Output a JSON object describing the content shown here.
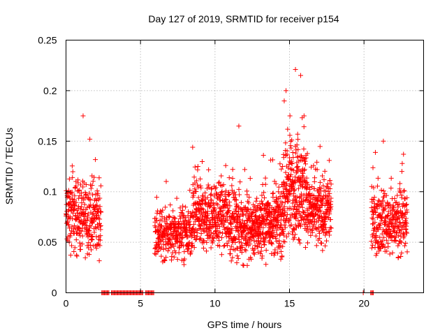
{
  "chart_data": {
    "type": "scatter",
    "title": "Day 127 of 2019, SRMTID for receiver p154",
    "xlabel": "GPS time / hours",
    "ylabel": "SRMTID / TECUs",
    "xlim": [
      0,
      24
    ],
    "ylim": [
      0,
      0.25
    ],
    "x_ticks": [
      0,
      5,
      10,
      15,
      20
    ],
    "x_tick_labels": [
      "0",
      "5",
      "10",
      "15",
      "20"
    ],
    "y_ticks": [
      0,
      0.05,
      0.1,
      0.15,
      0.2,
      0.25
    ],
    "y_tick_labels": [
      "0",
      "0.05",
      "0.1",
      "0.15",
      "0.2",
      "0.25"
    ],
    "grid": true,
    "marker": "+",
    "color": "#ff0000",
    "series": [
      {
        "name": "SRMTID",
        "segments": [
          {
            "x_start": 0.0,
            "x_end": 2.35,
            "base": 0.075,
            "spread": 0.028,
            "n": 300
          },
          {
            "x_start": 5.95,
            "x_end": 8.5,
            "base": 0.058,
            "spread": 0.02,
            "n": 300
          },
          {
            "x_start": 8.5,
            "x_end": 11.0,
            "base": 0.075,
            "spread": 0.026,
            "n": 340
          },
          {
            "x_start": 11.0,
            "x_end": 13.0,
            "base": 0.065,
            "spread": 0.025,
            "n": 300
          },
          {
            "x_start": 13.0,
            "x_end": 14.6,
            "base": 0.07,
            "spread": 0.026,
            "n": 250
          },
          {
            "x_start": 14.6,
            "x_end": 16.2,
            "base": 0.1,
            "spread": 0.04,
            "n": 280
          },
          {
            "x_start": 16.2,
            "x_end": 17.8,
            "base": 0.08,
            "spread": 0.027,
            "n": 240
          },
          {
            "x_start": 20.5,
            "x_end": 22.9,
            "base": 0.07,
            "spread": 0.024,
            "n": 310
          }
        ],
        "zero_ranges": [
          [
            2.4,
            2.9
          ],
          [
            3.05,
            5.2
          ],
          [
            5.35,
            5.9
          ],
          [
            19.95,
            20.0
          ],
          [
            20.45,
            20.65
          ]
        ],
        "peaks": [
          {
            "x": 1.6,
            "y": 0.152
          },
          {
            "x": 8.5,
            "y": 0.144
          },
          {
            "x": 11.6,
            "y": 0.165
          },
          {
            "x": 15.4,
            "y": 0.221
          },
          {
            "x": 15.75,
            "y": 0.215
          },
          {
            "x": 21.3,
            "y": 0.15
          }
        ]
      }
    ]
  }
}
